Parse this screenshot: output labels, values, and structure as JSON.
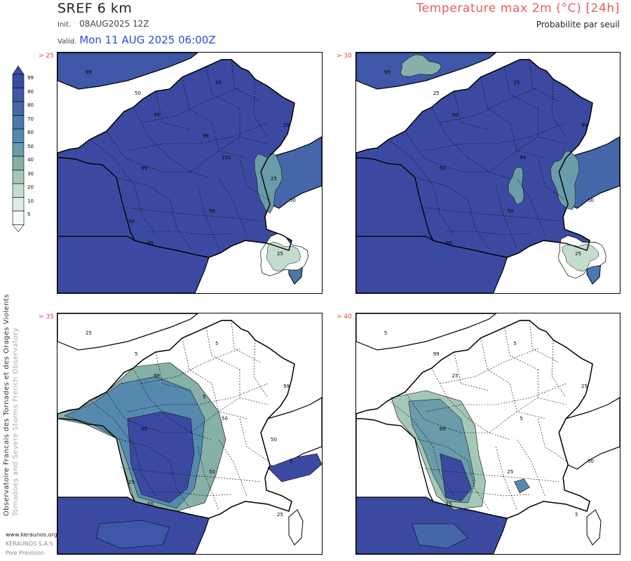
{
  "header": {
    "model": "SREF 6 km",
    "init_label": "Init.",
    "init_value": "08AUG2025 12Z",
    "valid_label": "Valid.",
    "valid_value": "Mon 11 AUG 2025 06:00Z",
    "parameter": "Temperature max 2m (°C) [24h]",
    "subtitle": "Probabilite par seuil"
  },
  "legend": {
    "levels": [
      "99",
      "90",
      "80",
      "70",
      "60",
      "50",
      "40",
      "30",
      "20",
      "10",
      "5"
    ],
    "colors": [
      "#3b4aa0",
      "#3e57a6",
      "#4567aa",
      "#4c78ae",
      "#5689ae",
      "#6a9ca9",
      "#86b0a8",
      "#a5c7b8",
      "#c4dccd",
      "#deece4",
      "#f6faf7"
    ]
  },
  "panels": [
    {
      "threshold": "> 25",
      "coverage": "high",
      "labels": [
        "99",
        "99",
        "255",
        "50",
        "99",
        "25",
        "25",
        "99",
        "99",
        "25",
        "50",
        "99",
        "25",
        "50"
      ]
    },
    {
      "threshold": "> 30",
      "coverage": "high",
      "labels": [
        "99",
        "50",
        "99",
        "50",
        "99",
        "25",
        "99",
        "50",
        "50",
        "25",
        "25"
      ]
    },
    {
      "threshold": "> 35",
      "coverage": "west",
      "labels": [
        "25",
        "99",
        "50",
        "5",
        "50",
        "5",
        "99",
        "99",
        "50",
        "25",
        "5",
        "5",
        "50",
        "25"
      ]
    },
    {
      "threshold": "> 40",
      "coverage": "southwest",
      "labels": [
        "5",
        "25",
        "5",
        "50",
        "25",
        "5",
        "25",
        "99",
        "25",
        "5",
        "99"
      ]
    }
  ],
  "side_text": {
    "line1": "Observatoire Francais des Tornades et des Orages Violents",
    "line2": "Tornadoes and Severe Storms French Observatory"
  },
  "credits": [
    "www.keraunos.org",
    "KERAUNOS S.A.S",
    "Pole Prevision"
  ],
  "colors": {
    "title_red": "#f0595f",
    "valid_blue": "#2a4dd6",
    "prob_high": "#3b4aa0",
    "prob_mid": "#6a9ca9",
    "prob_low": "#c4dccd"
  }
}
